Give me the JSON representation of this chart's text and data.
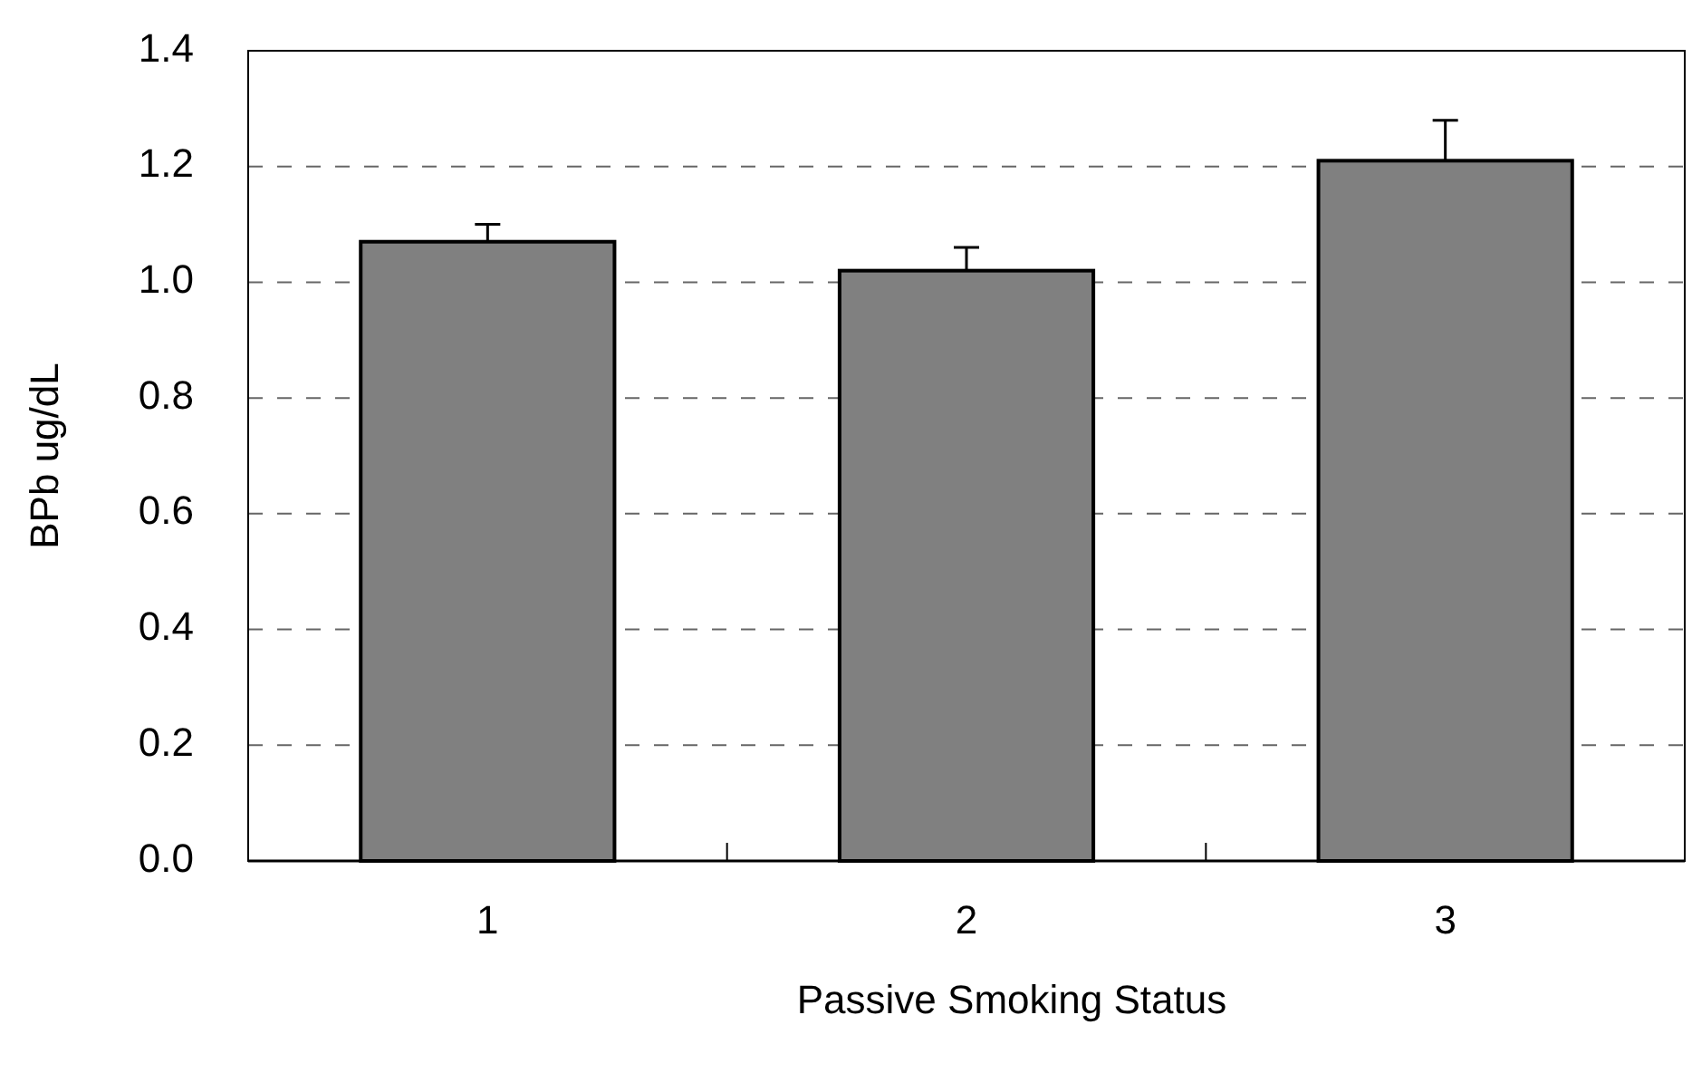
{
  "chart_data": {
    "type": "bar",
    "xlabel": "Passive Smoking Status",
    "ylabel": "BPb ug/dL",
    "categories": [
      "1",
      "2",
      "3"
    ],
    "values": [
      1.07,
      1.02,
      1.21
    ],
    "errors": [
      0.03,
      0.04,
      0.07
    ],
    "color": "#808080",
    "ylim": [
      0,
      1.4
    ],
    "yticks": [
      {
        "value": 0,
        "label": "0.0"
      },
      0.2,
      0.4,
      0.6,
      0.8,
      {
        "value": 1,
        "label": "1.0"
      },
      1.2,
      1.4
    ],
    "grid": "y"
  }
}
